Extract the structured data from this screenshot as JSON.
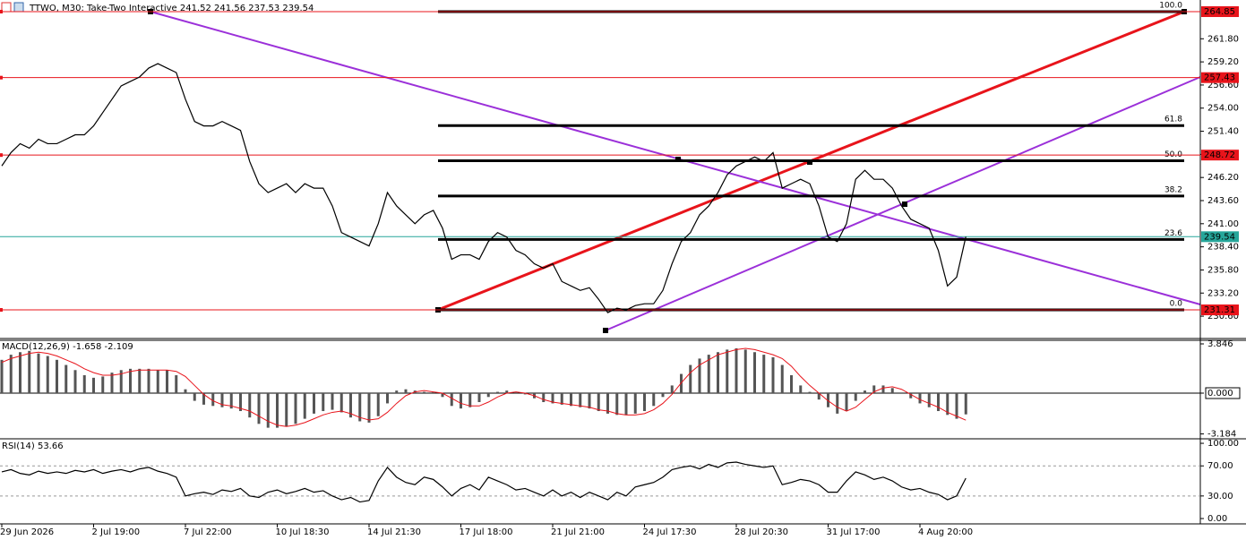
{
  "chart_data": [
    {
      "type": "line",
      "title": "TTWO, M30:  Take-Two Interactive  241.52 241.56 237.53 239.54",
      "categories": [
        "29 Jun 2026",
        null,
        null,
        null,
        null,
        null,
        null,
        null,
        null,
        null,
        "2 Jul 19:00",
        null,
        null,
        null,
        null,
        null,
        null,
        null,
        null,
        null,
        "7 Jul 22:00",
        null,
        null,
        null,
        null,
        null,
        null,
        null,
        null,
        null,
        "10 Jul 18:30",
        null,
        null,
        null,
        null,
        null,
        null,
        null,
        null,
        null,
        "14 Jul 21:30",
        null,
        null,
        null,
        null,
        null,
        null,
        null,
        null,
        null,
        "17 Jul 18:00",
        null,
        null,
        null,
        null,
        null,
        null,
        null,
        null,
        null,
        "21 Jul 21:00",
        null,
        null,
        null,
        null,
        null,
        null,
        null,
        null,
        null,
        "24 Jul 17:30",
        null,
        null,
        null,
        null,
        null,
        null,
        null,
        null,
        null,
        "28 Jul 20:30",
        null,
        null,
        null,
        null,
        null,
        null,
        null,
        null,
        null,
        "31 Jul 17:00",
        null,
        null,
        null,
        null,
        null,
        null,
        null,
        null,
        null,
        "4 Aug 20:00",
        null,
        null,
        null,
        null,
        null
      ],
      "series": [
        {
          "color": "#000000",
          "values": [
            247.5,
            249,
            250,
            249.5,
            250.5,
            250,
            250,
            250.5,
            251,
            251,
            252,
            253.5,
            255,
            256.5,
            257,
            257.5,
            258.5,
            259,
            258.5,
            258,
            255,
            252.5,
            252,
            252,
            252.5,
            252,
            251.5,
            248,
            245.5,
            244.5,
            245,
            245.5,
            244.5,
            245.5,
            245,
            245,
            243,
            240,
            239.5,
            239,
            238.5,
            241,
            244.5,
            243,
            242,
            241,
            242,
            242.5,
            240.5,
            237,
            237.5,
            237.5,
            237,
            239,
            240,
            239.5,
            238,
            237.5,
            236.5,
            236,
            236.5,
            234.5,
            234,
            233.5,
            233.8,
            232.5,
            231,
            231.5,
            231.3,
            231.8,
            232,
            232,
            233.5,
            236.5,
            239,
            240,
            242,
            243,
            244.5,
            246.5,
            247.5,
            248,
            248.5,
            248,
            249,
            245,
            245.5,
            246,
            245.5,
            243,
            239.5,
            239,
            241,
            246,
            247,
            246,
            246,
            245,
            243,
            241.5,
            241,
            240.5,
            238,
            234,
            235,
            239.54
          ]
        }
      ],
      "ylim": [
        228.09,
        266.16
      ],
      "yticks": [
        {
          "value": 230.6,
          "label": "230.60"
        },
        {
          "value": 233.2,
          "label": "233.20"
        },
        {
          "value": 235.8,
          "label": "235.80"
        },
        {
          "value": 238.4,
          "label": "238.40"
        },
        {
          "value": 241,
          "label": "241.00"
        },
        {
          "value": 243.6,
          "label": "243.60"
        },
        {
          "value": 246.2,
          "label": "246.20"
        },
        {
          "value": 248.8,
          "label": "248.80"
        },
        {
          "value": 251.4,
          "label": "251.40"
        },
        {
          "value": 254,
          "label": "254.00"
        },
        {
          "value": 256.6,
          "label": "256.60"
        },
        {
          "value": 259.2,
          "label": "259.20"
        },
        {
          "value": 261.8,
          "label": "261.80"
        }
      ],
      "hlines": [
        {
          "value": 264.85,
          "color": "#e8141b"
        },
        {
          "value": 257.43,
          "color": "#e8141b"
        },
        {
          "value": 248.72,
          "color": "#e8141b"
        },
        {
          "value": 231.31,
          "color": "#e8141b"
        }
      ],
      "last_price": {
        "value": 239.54,
        "color": "#26a69a"
      },
      "fibonacci": [
        {
          "label": "100.0",
          "value": 264.85
        },
        {
          "label": "61.8",
          "value": 252.04
        },
        {
          "label": "50.0",
          "value": 248.08
        },
        {
          "label": "38.2",
          "value": 244.12
        },
        {
          "label": "23.6",
          "value": 239.23
        },
        {
          "label": "0.0",
          "value": 231.31
        }
      ]
    },
    {
      "type": "macd",
      "title": "MACD(12,26,9) -1.658 -2.109",
      "histogram": {
        "color": "#555555",
        "values": [
          2.6,
          3.0,
          3.2,
          3.3,
          3.1,
          2.9,
          2.6,
          2.2,
          1.8,
          1.4,
          1.2,
          1.3,
          1.6,
          1.8,
          1.9,
          1.9,
          1.9,
          1.8,
          1.8,
          1.4,
          0.3,
          -0.6,
          -0.9,
          -1.0,
          -1.1,
          -1.2,
          -1.4,
          -1.9,
          -2.4,
          -2.7,
          -2.7,
          -2.6,
          -2.4,
          -2.0,
          -1.6,
          -1.4,
          -1.3,
          -1.5,
          -1.9,
          -2.2,
          -2.3,
          -1.8,
          -0.8,
          0.2,
          0.3,
          0.2,
          0.1,
          0.1,
          -0.3,
          -1.0,
          -1.2,
          -1.1,
          -0.7,
          -0.3,
          0.1,
          0.2,
          0.1,
          -0.1,
          -0.4,
          -0.7,
          -0.8,
          -0.9,
          -1.0,
          -1.1,
          -1.2,
          -1.4,
          -1.6,
          -1.7,
          -1.7,
          -1.6,
          -1.4,
          -1.0,
          -0.3,
          0.6,
          1.5,
          2.2,
          2.7,
          3.0,
          3.2,
          3.4,
          3.5,
          3.4,
          3.2,
          3.0,
          2.8,
          2.2,
          1.4,
          0.6,
          0.1,
          -0.5,
          -1.1,
          -1.6,
          -1.4,
          -0.6,
          0.2,
          0.6,
          0.6,
          0.4,
          0.0,
          -0.4,
          -0.8,
          -1.1,
          -1.4,
          -1.7,
          -2.0,
          -1.658
        ]
      },
      "signal": {
        "color": "#e8141b",
        "values": [
          2.4,
          2.7,
          2.9,
          3.1,
          3.2,
          3.1,
          2.9,
          2.6,
          2.3,
          1.9,
          1.6,
          1.4,
          1.4,
          1.5,
          1.7,
          1.8,
          1.8,
          1.8,
          1.8,
          1.7,
          1.3,
          0.6,
          -0.1,
          -0.6,
          -0.9,
          -1.0,
          -1.2,
          -1.4,
          -1.8,
          -2.2,
          -2.5,
          -2.6,
          -2.5,
          -2.3,
          -2.0,
          -1.7,
          -1.5,
          -1.4,
          -1.6,
          -1.9,
          -2.1,
          -2.0,
          -1.5,
          -0.8,
          -0.2,
          0.1,
          0.2,
          0.1,
          0.0,
          -0.4,
          -0.8,
          -1.0,
          -1.0,
          -0.7,
          -0.3,
          0.0,
          0.1,
          0.0,
          -0.2,
          -0.5,
          -0.7,
          -0.8,
          -0.9,
          -1.0,
          -1.1,
          -1.3,
          -1.4,
          -1.6,
          -1.7,
          -1.7,
          -1.6,
          -1.3,
          -0.8,
          -0.1,
          0.8,
          1.6,
          2.2,
          2.6,
          3.0,
          3.2,
          3.4,
          3.5,
          3.4,
          3.2,
          3.0,
          2.7,
          2.1,
          1.3,
          0.6,
          0.0,
          -0.6,
          -1.1,
          -1.4,
          -1.1,
          -0.5,
          0.1,
          0.4,
          0.5,
          0.3,
          -0.1,
          -0.5,
          -0.8,
          -1.1,
          -1.5,
          -1.8,
          -2.109
        ]
      },
      "ylim": [
        -3.566,
        4.126
      ],
      "yticks": [
        3.846,
        {
          "value": 0,
          "label": "0.000"
        },
        -3.184
      ],
      "zero_line": true
    },
    {
      "type": "line",
      "title": "RSI(14) 53.66",
      "series": [
        {
          "color": "#000000",
          "values": [
            62,
            65,
            60,
            58,
            63,
            60,
            62,
            60,
            64,
            62,
            65,
            60,
            63,
            65,
            62,
            66,
            68,
            63,
            60,
            55,
            30,
            33,
            35,
            32,
            38,
            36,
            40,
            30,
            28,
            35,
            38,
            33,
            36,
            40,
            35,
            37,
            30,
            25,
            28,
            22,
            24,
            50,
            68,
            55,
            48,
            45,
            55,
            52,
            42,
            30,
            40,
            45,
            38,
            55,
            50,
            45,
            38,
            40,
            35,
            30,
            38,
            30,
            35,
            28,
            35,
            30,
            25,
            35,
            30,
            42,
            45,
            48,
            55,
            65,
            68,
            70,
            66,
            72,
            68,
            74,
            75,
            72,
            70,
            68,
            70,
            45,
            48,
            52,
            50,
            45,
            35,
            35,
            50,
            62,
            58,
            52,
            55,
            50,
            42,
            38,
            40,
            35,
            32,
            25,
            30,
            53.66
          ]
        }
      ],
      "ylim": [
        -7.1,
        106
      ],
      "yticks": [
        {
          "value": 100,
          "label": "100.00"
        },
        {
          "value": 70,
          "label": "70.00"
        },
        {
          "value": 30,
          "label": "30.00"
        },
        {
          "value": 0,
          "label": "0.00"
        }
      ],
      "levels": [
        70,
        30
      ]
    }
  ]
}
